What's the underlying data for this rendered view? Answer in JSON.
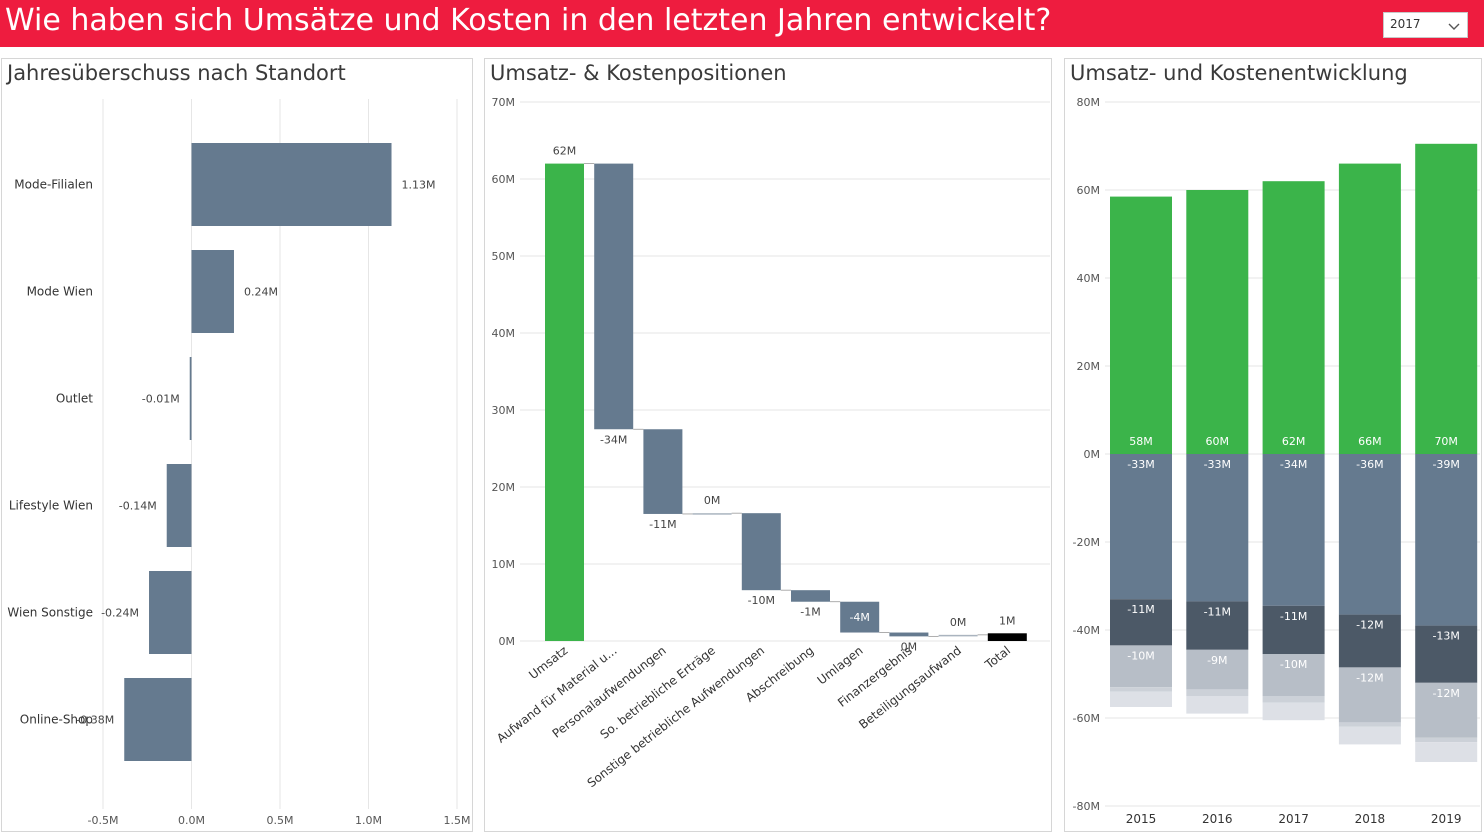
{
  "header": {
    "title": "Wie haben sich Umsätze und Kosten in den letzten Jahren entwickelt?",
    "year_select": {
      "value": "2017",
      "icon": "chevron-down-icon"
    }
  },
  "colors": {
    "header": "#ee1c3f",
    "bar_blue": "#657a8f",
    "green": "#3bb44a",
    "dark": "#4c5967",
    "light": "#b7bec7",
    "lighter": "#ccd1d8",
    "lightest": "#dde0e6",
    "total": "#000000",
    "grid": "#e6e6e6"
  },
  "panels": {
    "p1": {
      "title": "Jahresüberschuss nach Standort"
    },
    "p2": {
      "title": "Umsatz- & Kostenpositionen"
    },
    "p3": {
      "title": "Umsatz- und Kostenentwicklung"
    }
  },
  "chart_data": [
    {
      "type": "bar",
      "orientation": "horizontal",
      "title": "Jahresüberschuss nach Standort",
      "categories": [
        "Mode-Filialen",
        "Mode Wien",
        "Outlet",
        "Lifestyle Wien",
        "Wien Sonstige",
        "Online-Shop"
      ],
      "values": [
        1.13,
        0.24,
        -0.01,
        -0.14,
        -0.24,
        -0.38
      ],
      "labels": [
        "1.13M",
        "0.24M",
        "-0.01M",
        "-0.14M",
        "-0.24M",
        "-0.38M"
      ],
      "unit": "M",
      "xlim": [
        -0.5,
        1.5
      ],
      "xticks": [
        -0.5,
        0,
        0.5,
        1,
        1.5
      ],
      "xtick_labels": [
        "-0.5M",
        "0.0M",
        "0.5M",
        "1.0M",
        "1.5M"
      ],
      "grid": true
    },
    {
      "type": "waterfall",
      "title": "Umsatz- & Kostenpositionen",
      "categories": [
        "Umsatz",
        "Aufwand für Material u...",
        "Personalaufwendungen",
        "So. betriebliche Erträge",
        "Sonstige betriebliche Aufwendungen",
        "Abschreibung",
        "Umlagen",
        "Finanzergebnis",
        "Beteiligungsaufwand",
        "Total"
      ],
      "values": [
        62,
        -34.5,
        -11,
        0.1,
        -10,
        -1.5,
        -4,
        -0.5,
        0.2,
        1
      ],
      "labels": [
        "62M",
        "-34M",
        "-11M",
        "0M",
        "-10M",
        "-1M",
        "-4M",
        "0M",
        "0M",
        "1M"
      ],
      "kinds": [
        "increase",
        "decrease",
        "decrease",
        "increase",
        "decrease",
        "decrease",
        "decrease",
        "decrease",
        "increase",
        "total"
      ],
      "ylim": [
        0,
        70
      ],
      "yticks": [
        0,
        10,
        20,
        30,
        40,
        50,
        60,
        70
      ],
      "ytick_labels": [
        "0M",
        "10M",
        "20M",
        "30M",
        "40M",
        "50M",
        "60M",
        "70M"
      ],
      "grid": true
    },
    {
      "type": "bar",
      "stacked": true,
      "title": "Umsatz- und Kostenentwicklung",
      "categories": [
        "2015",
        "2016",
        "2017",
        "2018",
        "2019"
      ],
      "series": [
        {
          "color": "#3bb44a",
          "values": [
            58.5,
            60,
            62,
            66,
            70.5
          ],
          "labels": [
            "58M",
            "60M",
            "62M",
            "66M",
            "70M"
          ]
        },
        {
          "color": "#657a8f",
          "values": [
            -33,
            -33.5,
            -34.5,
            -36.5,
            -39
          ],
          "labels": [
            "-33M",
            "-33M",
            "-34M",
            "-36M",
            "-39M"
          ]
        },
        {
          "color": "#4c5967",
          "values": [
            -10.5,
            -11,
            -11,
            -12,
            -13
          ],
          "labels": [
            "-11M",
            "-11M",
            "-11M",
            "-12M",
            "-13M"
          ]
        },
        {
          "color": "#b7bec7",
          "values": [
            -9.5,
            -9,
            -9.5,
            -12.5,
            -12.5
          ],
          "labels": [
            "-10M",
            "-9M",
            "-10M",
            "-12M",
            "-12M"
          ]
        },
        {
          "color": "#ccd1d8",
          "values": [
            -1,
            -1.5,
            -1.5,
            -1,
            -1
          ],
          "labels": [
            "",
            "",
            "",
            "",
            ""
          ]
        },
        {
          "color": "#dde0e6",
          "values": [
            -3.5,
            -4,
            -4,
            -4,
            -4.5
          ],
          "labels": [
            "",
            "",
            "",
            "",
            ""
          ]
        }
      ],
      "ylim": [
        -80,
        80
      ],
      "yticks": [
        -80,
        -60,
        -40,
        -20,
        0,
        20,
        40,
        60,
        80
      ],
      "ytick_labels": [
        "-80M",
        "-60M",
        "-40M",
        "-20M",
        "0M",
        "20M",
        "40M",
        "60M",
        "80M"
      ],
      "grid": true
    }
  ]
}
